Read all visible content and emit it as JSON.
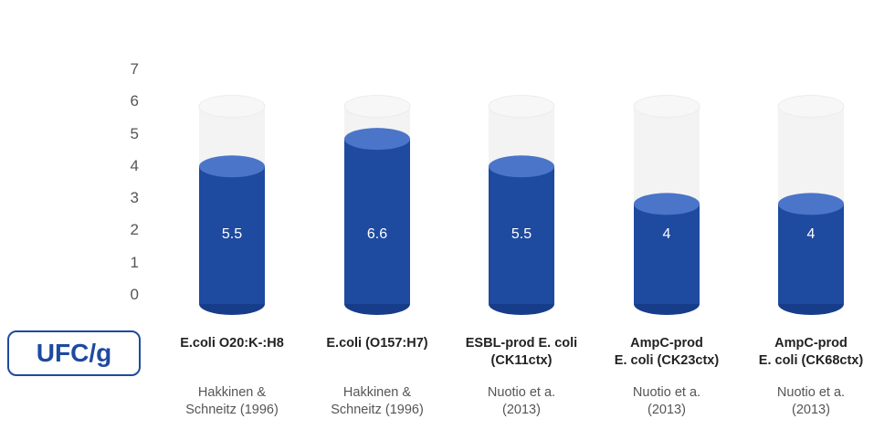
{
  "chart_data": {
    "type": "bar",
    "categories": [
      {
        "lines": [
          "E.coli O20:K-:H8"
        ],
        "source": [
          "Hakkinen &",
          "Schneitz (1996)"
        ]
      },
      {
        "lines": [
          "E.coli (O157:H7)"
        ],
        "source": [
          "Hakkinen &",
          "Schneitz (1996)"
        ]
      },
      {
        "lines": [
          "ESBL-prod E. coli",
          "(CK11ctx)"
        ],
        "source": [
          "Nuotio et a.",
          "(2013)"
        ]
      },
      {
        "lines": [
          "AmpC-prod",
          "E. coli (CK23ctx)"
        ],
        "source": [
          "Nuotio et a.",
          "(2013)"
        ]
      },
      {
        "lines": [
          "AmpC-prod",
          "E. coli (CK68ctx)"
        ],
        "source": [
          "Nuotio et a.",
          "(2013)"
        ]
      }
    ],
    "values": [
      5.5,
      6.6,
      5.5,
      4,
      4
    ],
    "value_labels": [
      "5.5",
      "6.6",
      "5.5",
      "4",
      "4"
    ],
    "ylim": [
      0,
      7.9
    ],
    "yticks": [
      "0",
      "1",
      "2",
      "3",
      "4",
      "5",
      "6",
      "7"
    ],
    "ylabel": "UFC/g",
    "grid": false,
    "colors": {
      "bar_body": "#1e4aa0",
      "bar_top": "#4a75c8",
      "bar_bottom": "#173d8a",
      "glass": "#f3f3f3",
      "glass_top": "#f7f7f7"
    }
  }
}
